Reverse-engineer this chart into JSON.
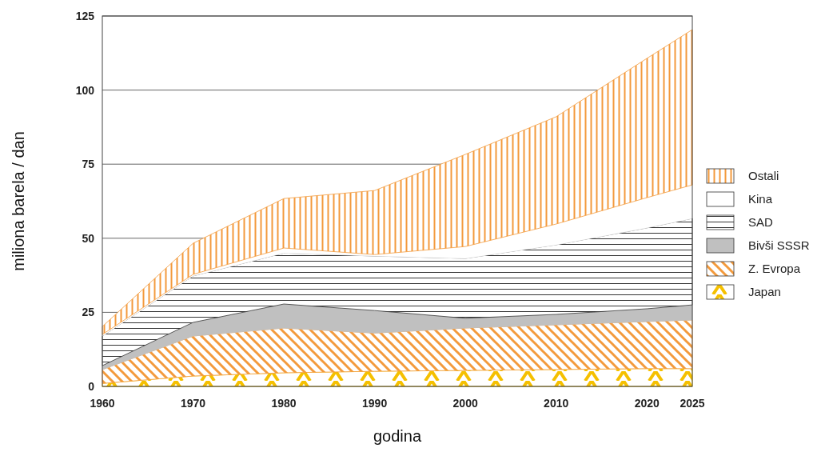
{
  "chart_data": {
    "type": "area",
    "stacked": true,
    "xlabel": "godina",
    "ylabel": "miliona barela / dan",
    "x": [
      1960,
      1970,
      1980,
      1990,
      2000,
      2010,
      2020,
      2025
    ],
    "xlim": [
      1960,
      2025
    ],
    "xticks": [
      1960,
      1970,
      1980,
      1990,
      2000,
      2010,
      2020,
      2025
    ],
    "ylim": [
      0,
      125
    ],
    "yticks": [
      0,
      25,
      50,
      75,
      100,
      125
    ],
    "grid": "y",
    "legend": "right",
    "series": [
      {
        "name": "Japan",
        "color": "#f5c000",
        "values": [
          1,
          3.5,
          4.6,
          5.1,
          5.4,
          5.7,
          6,
          6
        ]
      },
      {
        "name": "Z. Evropa",
        "color": "#f39a3c",
        "values": [
          4.7,
          13.5,
          15.1,
          12.9,
          14.3,
          15.1,
          15.9,
          16.4
        ]
      },
      {
        "name": "Bivši SSSR",
        "color": "#c0c0c0",
        "values": [
          1.3,
          4.6,
          8.1,
          7.6,
          3.3,
          3.5,
          4.3,
          5.1
        ]
      },
      {
        "name": "SAD",
        "color": "#333333",
        "values": [
          10,
          15.7,
          17.2,
          18.4,
          20.2,
          23.5,
          27.3,
          29.2
        ]
      },
      {
        "name": "Kina",
        "color": "#ffffff",
        "values": [
          0.5,
          0.5,
          1.7,
          0.5,
          4,
          7,
          10.2,
          11.3
        ]
      },
      {
        "name": "Ostali",
        "color": "#f39a3c",
        "values": [
          2.7,
          10.5,
          16.7,
          21.6,
          31.1,
          36.2,
          47,
          52.4
        ]
      }
    ]
  }
}
